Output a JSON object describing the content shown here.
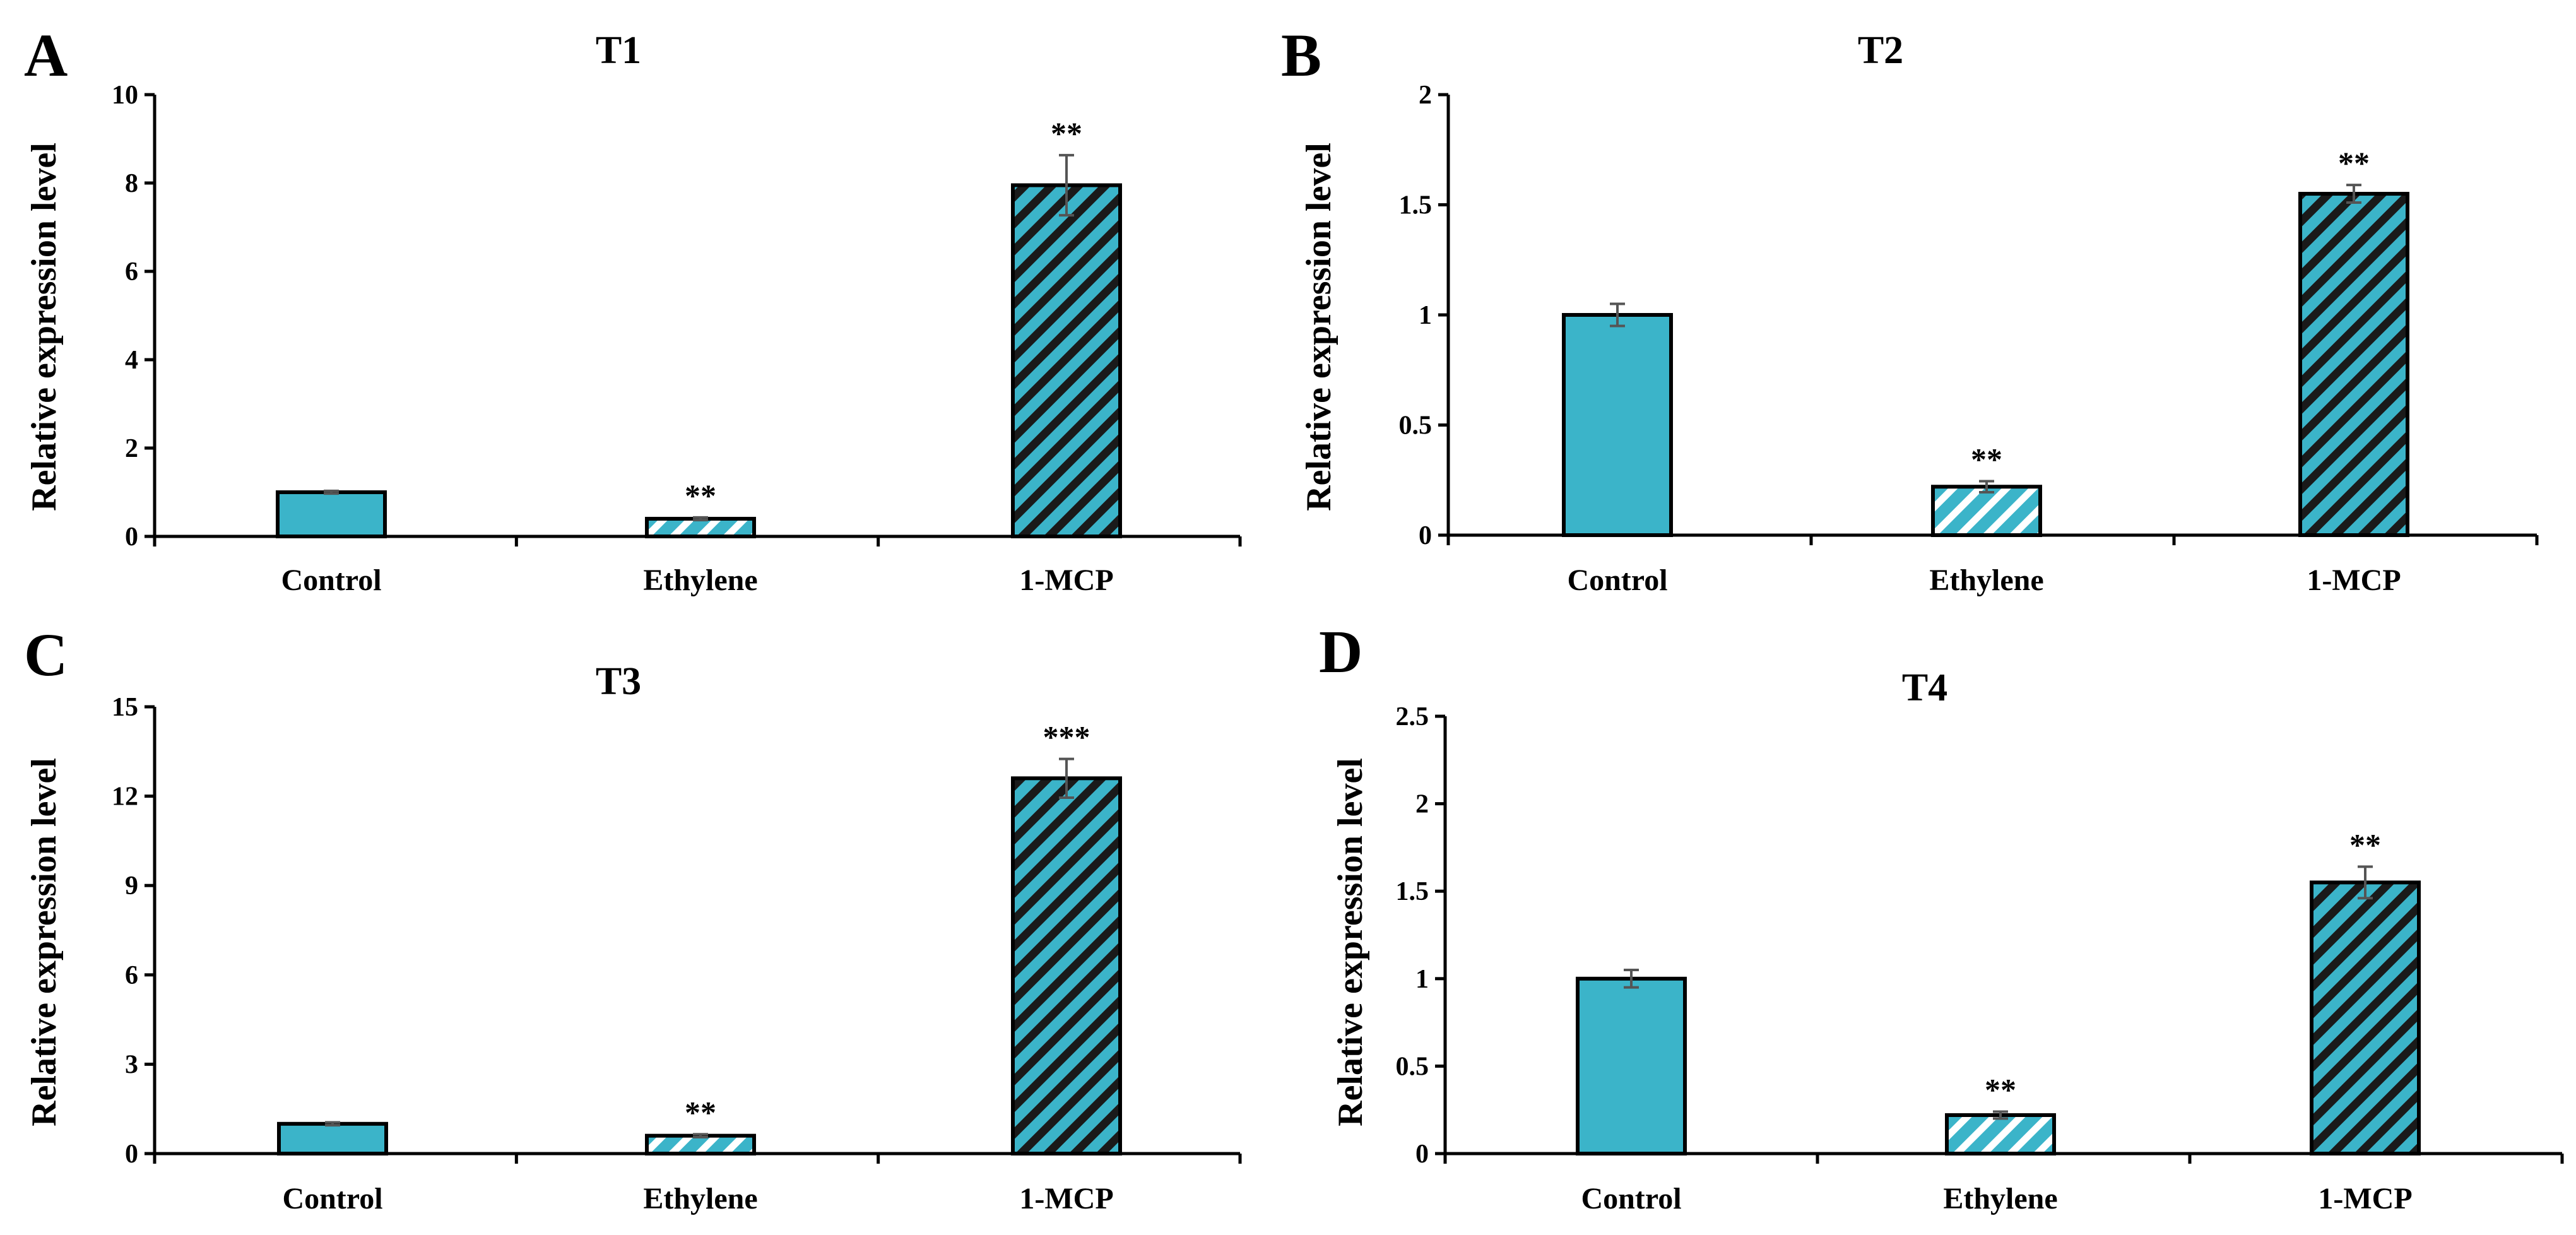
{
  "colors": {
    "bar_fill": "#3bb4c9",
    "hatch_light": "#ffffff",
    "hatch_dark": "#1a1a1a",
    "outline": "#000000",
    "error_bar": "#555555"
  },
  "chart_data": [
    {
      "type": "bar",
      "panel": "A",
      "title": "T1",
      "ylabel": "Relative expression level",
      "categories": [
        "Control",
        "Ethylene",
        "1-MCP"
      ],
      "values": [
        1.0,
        0.4,
        7.95
      ],
      "errors": [
        0.03,
        0.03,
        0.68
      ],
      "significance": [
        "",
        "**",
        "**"
      ],
      "patterns": [
        "solid",
        "hatch-light",
        "hatch-dark"
      ],
      "ylim": [
        0,
        10
      ],
      "yticks": [
        0,
        2,
        4,
        6,
        8,
        10
      ],
      "ytick_labels": [
        "0",
        "2",
        "4",
        "6",
        "8",
        "10"
      ],
      "grid": false
    },
    {
      "type": "bar",
      "panel": "B",
      "title": "T2",
      "ylabel": "Relative expression level",
      "categories": [
        "Control",
        "Ethylene",
        "1-MCP"
      ],
      "values": [
        1.0,
        0.22,
        1.55
      ],
      "errors": [
        0.05,
        0.025,
        0.04
      ],
      "significance": [
        "",
        "**",
        "**"
      ],
      "patterns": [
        "solid",
        "hatch-light",
        "hatch-dark"
      ],
      "ylim": [
        0,
        2
      ],
      "yticks": [
        0,
        0.5,
        1,
        1.5,
        2
      ],
      "ytick_labels": [
        "0",
        "0.5",
        "1",
        "1.5",
        "2"
      ],
      "grid": false
    },
    {
      "type": "bar",
      "panel": "C",
      "title": "T3",
      "ylabel": "Relative expression level",
      "categories": [
        "Control",
        "Ethylene",
        "1-MCP"
      ],
      "values": [
        1.0,
        0.6,
        12.6
      ],
      "errors": [
        0.05,
        0.05,
        0.65
      ],
      "significance": [
        "",
        "**",
        "***"
      ],
      "patterns": [
        "solid",
        "hatch-light",
        "hatch-dark"
      ],
      "ylim": [
        0,
        15
      ],
      "yticks": [
        0,
        3,
        6,
        9,
        12,
        15
      ],
      "ytick_labels": [
        "0",
        "3",
        "6",
        "9",
        "12",
        "15"
      ],
      "grid": false
    },
    {
      "type": "bar",
      "panel": "D",
      "title": "T4",
      "ylabel": "Relative expression level",
      "categories": [
        "Control",
        "Ethylene",
        "1-MCP"
      ],
      "values": [
        1.0,
        0.22,
        1.55
      ],
      "errors": [
        0.05,
        0.02,
        0.09
      ],
      "significance": [
        "",
        "**",
        "**"
      ],
      "patterns": [
        "solid",
        "hatch-light",
        "hatch-dark"
      ],
      "ylim": [
        0,
        2.5
      ],
      "yticks": [
        0,
        0.5,
        1,
        1.5,
        2,
        2.5
      ],
      "ytick_labels": [
        "0",
        "0.5",
        "1",
        "1.5",
        "2",
        "2.5"
      ],
      "grid": false
    }
  ]
}
